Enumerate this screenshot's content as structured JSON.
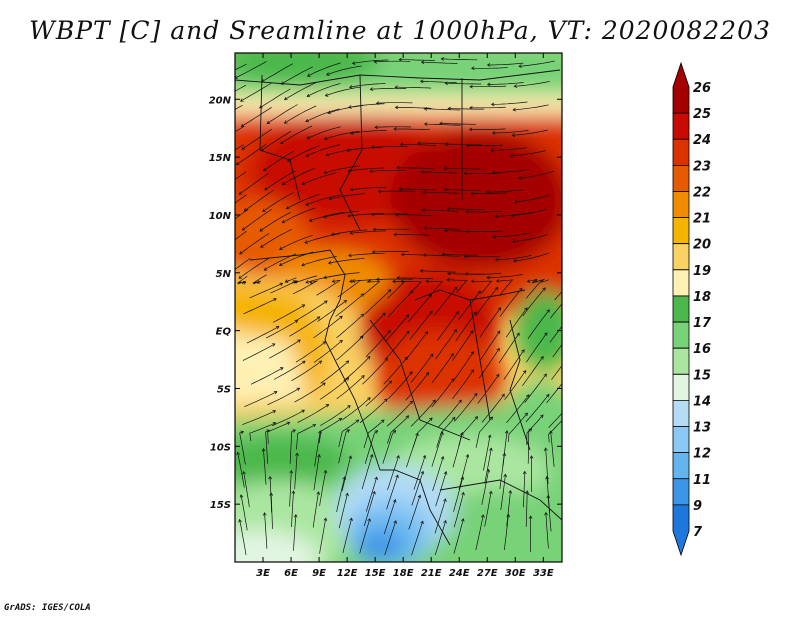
{
  "title": "WBPT [C] and Sreamline at 1000hPa, VT: 2020082203",
  "credit": "GrADS: IGES/COLA",
  "map": {
    "type": "map",
    "variable": "WBPT [C]",
    "overlay": "Streamline",
    "level": "1000hPa",
    "valid_time": "2020082203",
    "lon_range_deg": [
      0,
      35
    ],
    "lat_range_deg": [
      -20,
      24
    ],
    "lon_labels": [
      "3E",
      "6E",
      "9E",
      "12E",
      "15E",
      "18E",
      "21E",
      "24E",
      "27E",
      "30E",
      "33E"
    ],
    "lon_values": [
      3,
      6,
      9,
      12,
      15,
      18,
      21,
      24,
      27,
      30,
      33
    ],
    "lat_labels": [
      "20N",
      "15N",
      "10N",
      "5N",
      "EQ",
      "5S",
      "10S",
      "15S"
    ],
    "lat_values": [
      20,
      15,
      10,
      5,
      0,
      -5,
      -10,
      -15
    ],
    "colorbar_labels": [
      "26",
      "25",
      "24",
      "23",
      "22",
      "21",
      "20",
      "19",
      "18",
      "17",
      "16",
      "15",
      "14",
      "13",
      "12",
      "11",
      "9",
      "7"
    ],
    "colorbar_colors": [
      "#a50000",
      "#c80a00",
      "#dc3200",
      "#e65a00",
      "#f08c00",
      "#f5b400",
      "#fad264",
      "#fff0b4",
      "#4cb84c",
      "#78d278",
      "#aae6a0",
      "#e1f5e1",
      "#b4dcf5",
      "#8cc8f5",
      "#64b4f0",
      "#3c96e6",
      "#1e78dc"
    ]
  }
}
